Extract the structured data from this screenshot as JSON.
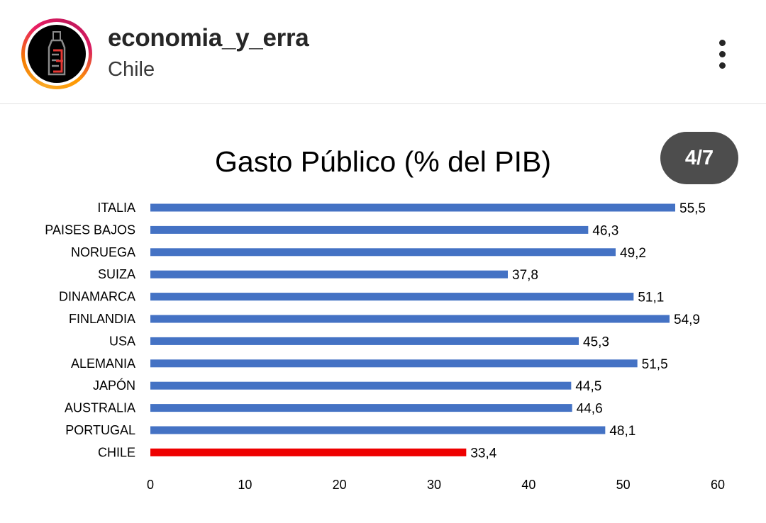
{
  "post_header": {
    "username": "economia_y_erra",
    "location": "Chile",
    "more_icon": "more-vertical-icon",
    "avatar_icon": "bottle-logo-icon"
  },
  "carousel": {
    "counter": "4/7"
  },
  "chart_data": {
    "type": "bar",
    "orientation": "horizontal",
    "title": "Gasto Público (% del PIB)",
    "xlabel": "",
    "ylabel": "",
    "categories": [
      "ITALIA",
      "PAISES BAJOS",
      "NORUEGA",
      "SUIZA",
      "DINAMARCA",
      "FINLANDIA",
      "USA",
      "ALEMANIA",
      "JAPÓN",
      "AUSTRALIA",
      "PORTUGAL",
      "CHILE"
    ],
    "values": [
      55.5,
      46.3,
      49.2,
      37.8,
      51.1,
      54.9,
      45.3,
      51.5,
      44.5,
      44.6,
      48.1,
      33.4
    ],
    "value_labels": [
      "55,5",
      "46,3",
      "49,2",
      "37,8",
      "51,1",
      "54,9",
      "45,3",
      "51,5",
      "44,5",
      "44,6",
      "48,1",
      "33,4"
    ],
    "xlim": [
      0,
      60
    ],
    "xticks": [
      0,
      10,
      20,
      30,
      40,
      50,
      60
    ],
    "grid": false,
    "legend": "none",
    "colors": {
      "default": "#4472c4",
      "highlight": "#ee0000",
      "highlight_category": "CHILE"
    }
  }
}
